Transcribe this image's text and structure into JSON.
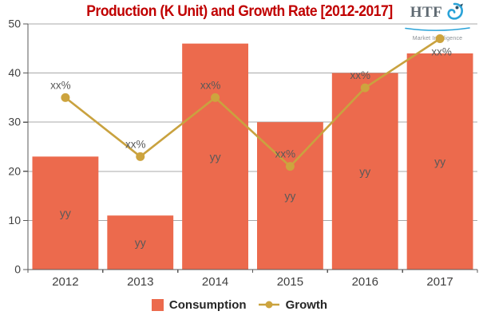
{
  "title": "Production (K Unit) and Growth Rate [2012-2017]",
  "logo": {
    "name": "HTF",
    "tagline": "Market Intelligence"
  },
  "colors": {
    "title": "#c00000",
    "bar": "#ec6a4d",
    "line": "#c9a23f",
    "dot": "#cda43e",
    "grid": "#a8a8a8",
    "axis": "#595959",
    "axis_text": "#404040",
    "data_label": "#595959",
    "legend_text": "#262626",
    "logo_blue": "#2aa3d8",
    "logo_gray": "#5f6a72"
  },
  "chart_data": {
    "type": "bar+line",
    "title": "Production (K Unit) and Growth Rate [2012-2017]",
    "categories": [
      "2012",
      "2013",
      "2014",
      "2015",
      "2016",
      "2017"
    ],
    "series": [
      {
        "name": "Consumption",
        "type": "bar",
        "values": [
          23,
          11,
          46,
          30,
          40,
          44
        ],
        "point_labels": [
          "yy",
          "yy",
          "yy",
          "yy",
          "yy",
          "yy"
        ]
      },
      {
        "name": "Growth",
        "type": "line",
        "values": [
          35,
          23,
          35,
          21,
          37,
          47
        ],
        "point_labels": [
          "xx%",
          "xx%",
          "xx%",
          "xx%",
          "xx%",
          "xx%"
        ]
      }
    ],
    "xlabel": "",
    "ylabel": "",
    "ylim": [
      0,
      50
    ],
    "yticks": [
      0,
      10,
      20,
      30,
      40,
      50
    ],
    "grid": "horizontal",
    "legend_position": "bottom"
  },
  "legend": {
    "items": [
      {
        "label": "Consumption",
        "marker": "square"
      },
      {
        "label": "Growth",
        "marker": "line-dot"
      }
    ]
  }
}
